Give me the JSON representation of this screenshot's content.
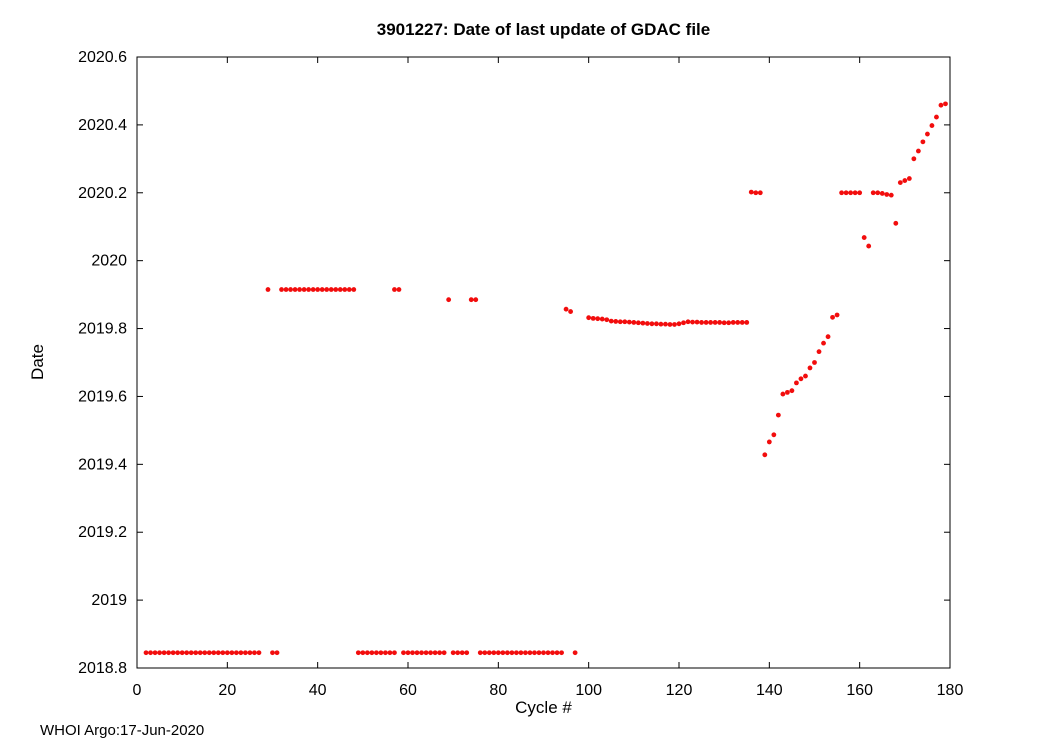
{
  "figure": {
    "footer": "WHOI Argo:17-Jun-2020"
  },
  "chart_data": {
    "type": "scatter",
    "title": "3901227: Date of last update of GDAC file",
    "xlabel": "Cycle #",
    "ylabel": "Date",
    "xlim": [
      0,
      180
    ],
    "ylim": [
      2018.8,
      2020.6
    ],
    "xticks": [
      0,
      20,
      40,
      60,
      80,
      100,
      120,
      140,
      160,
      180
    ],
    "yticks": [
      2018.8,
      2019,
      2019.2,
      2019.4,
      2019.6,
      2019.8,
      2020,
      2020.2,
      2020.4,
      2020.6
    ],
    "ytick_labels": [
      "2018.8",
      "2019",
      "2019.2",
      "2019.4",
      "2019.6",
      "2019.8",
      "2020",
      "2020.2",
      "2020.4",
      "2020.6"
    ],
    "grid": false,
    "legend": null,
    "marker_color": "#f20d0d",
    "marker_size": 2.4,
    "points": [
      [
        2,
        2018.845
      ],
      [
        3,
        2018.845
      ],
      [
        4,
        2018.845
      ],
      [
        5,
        2018.845
      ],
      [
        6,
        2018.845
      ],
      [
        7,
        2018.845
      ],
      [
        8,
        2018.845
      ],
      [
        9,
        2018.845
      ],
      [
        10,
        2018.845
      ],
      [
        11,
        2018.845
      ],
      [
        12,
        2018.845
      ],
      [
        13,
        2018.845
      ],
      [
        14,
        2018.845
      ],
      [
        15,
        2018.845
      ],
      [
        16,
        2018.845
      ],
      [
        17,
        2018.845
      ],
      [
        18,
        2018.845
      ],
      [
        19,
        2018.845
      ],
      [
        20,
        2018.845
      ],
      [
        21,
        2018.845
      ],
      [
        22,
        2018.845
      ],
      [
        23,
        2018.845
      ],
      [
        24,
        2018.845
      ],
      [
        25,
        2018.845
      ],
      [
        26,
        2018.845
      ],
      [
        27,
        2018.845
      ],
      [
        30,
        2018.845
      ],
      [
        31,
        2018.845
      ],
      [
        29,
        2019.915
      ],
      [
        32,
        2019.915
      ],
      [
        33,
        2019.915
      ],
      [
        34,
        2019.915
      ],
      [
        35,
        2019.915
      ],
      [
        36,
        2019.915
      ],
      [
        37,
        2019.915
      ],
      [
        38,
        2019.915
      ],
      [
        39,
        2019.915
      ],
      [
        40,
        2019.915
      ],
      [
        41,
        2019.915
      ],
      [
        42,
        2019.915
      ],
      [
        43,
        2019.915
      ],
      [
        44,
        2019.915
      ],
      [
        45,
        2019.915
      ],
      [
        46,
        2019.915
      ],
      [
        47,
        2019.915
      ],
      [
        48,
        2019.915
      ],
      [
        49,
        2018.845
      ],
      [
        50,
        2018.845
      ],
      [
        51,
        2018.845
      ],
      [
        52,
        2018.845
      ],
      [
        53,
        2018.845
      ],
      [
        54,
        2018.845
      ],
      [
        55,
        2018.845
      ],
      [
        56,
        2018.845
      ],
      [
        57,
        2018.845
      ],
      [
        57,
        2019.915
      ],
      [
        58,
        2019.915
      ],
      [
        59,
        2018.845
      ],
      [
        60,
        2018.845
      ],
      [
        61,
        2018.845
      ],
      [
        62,
        2018.845
      ],
      [
        63,
        2018.845
      ],
      [
        64,
        2018.845
      ],
      [
        65,
        2018.845
      ],
      [
        66,
        2018.845
      ],
      [
        67,
        2018.845
      ],
      [
        68,
        2018.845
      ],
      [
        69,
        2019.885
      ],
      [
        70,
        2018.845
      ],
      [
        71,
        2018.845
      ],
      [
        72,
        2018.845
      ],
      [
        73,
        2018.845
      ],
      [
        74,
        2019.885
      ],
      [
        75,
        2019.885
      ],
      [
        76,
        2018.845
      ],
      [
        77,
        2018.845
      ],
      [
        78,
        2018.845
      ],
      [
        79,
        2018.845
      ],
      [
        80,
        2018.845
      ],
      [
        81,
        2018.845
      ],
      [
        82,
        2018.845
      ],
      [
        83,
        2018.845
      ],
      [
        84,
        2018.845
      ],
      [
        85,
        2018.845
      ],
      [
        86,
        2018.845
      ],
      [
        87,
        2018.845
      ],
      [
        88,
        2018.845
      ],
      [
        89,
        2018.845
      ],
      [
        90,
        2018.845
      ],
      [
        91,
        2018.845
      ],
      [
        92,
        2018.845
      ],
      [
        93,
        2018.845
      ],
      [
        94,
        2018.845
      ],
      [
        95,
        2019.857
      ],
      [
        96,
        2019.85
      ],
      [
        97,
        2018.845
      ],
      [
        100,
        2019.832
      ],
      [
        101,
        2019.83
      ],
      [
        102,
        2019.829
      ],
      [
        103,
        2019.828
      ],
      [
        104,
        2019.826
      ],
      [
        105,
        2019.822
      ],
      [
        106,
        2019.821
      ],
      [
        107,
        2019.82
      ],
      [
        108,
        2019.82
      ],
      [
        109,
        2019.819
      ],
      [
        110,
        2019.818
      ],
      [
        111,
        2019.817
      ],
      [
        112,
        2019.816
      ],
      [
        113,
        2019.815
      ],
      [
        114,
        2019.814
      ],
      [
        115,
        2019.814
      ],
      [
        116,
        2019.813
      ],
      [
        117,
        2019.813
      ],
      [
        118,
        2019.812
      ],
      [
        119,
        2019.812
      ],
      [
        120,
        2019.814
      ],
      [
        121,
        2019.817
      ],
      [
        122,
        2019.82
      ],
      [
        123,
        2019.819
      ],
      [
        124,
        2019.819
      ],
      [
        125,
        2019.818
      ],
      [
        126,
        2019.818
      ],
      [
        127,
        2019.818
      ],
      [
        128,
        2019.818
      ],
      [
        129,
        2019.818
      ],
      [
        130,
        2019.817
      ],
      [
        131,
        2019.817
      ],
      [
        132,
        2019.818
      ],
      [
        133,
        2019.818
      ],
      [
        134,
        2019.818
      ],
      [
        135,
        2019.818
      ],
      [
        136,
        2020.202
      ],
      [
        137,
        2020.2
      ],
      [
        138,
        2020.2
      ],
      [
        139,
        2019.428
      ],
      [
        140,
        2019.466
      ],
      [
        141,
        2019.487
      ],
      [
        142,
        2019.545
      ],
      [
        143,
        2019.607
      ],
      [
        144,
        2019.612
      ],
      [
        145,
        2019.617
      ],
      [
        146,
        2019.64
      ],
      [
        147,
        2019.652
      ],
      [
        148,
        2019.66
      ],
      [
        149,
        2019.684
      ],
      [
        150,
        2019.7
      ],
      [
        151,
        2019.732
      ],
      [
        152,
        2019.757
      ],
      [
        153,
        2019.776
      ],
      [
        154,
        2019.833
      ],
      [
        155,
        2019.84
      ],
      [
        156,
        2020.2
      ],
      [
        157,
        2020.2
      ],
      [
        158,
        2020.2
      ],
      [
        159,
        2020.2
      ],
      [
        160,
        2020.2
      ],
      [
        161,
        2020.068
      ],
      [
        162,
        2020.043
      ],
      [
        163,
        2020.2
      ],
      [
        164,
        2020.2
      ],
      [
        165,
        2020.198
      ],
      [
        166,
        2020.195
      ],
      [
        167,
        2020.193
      ],
      [
        168,
        2020.11
      ],
      [
        169,
        2020.23
      ],
      [
        170,
        2020.236
      ],
      [
        171,
        2020.242
      ],
      [
        172,
        2020.3
      ],
      [
        173,
        2020.323
      ],
      [
        174,
        2020.35
      ],
      [
        175,
        2020.373
      ],
      [
        176,
        2020.398
      ],
      [
        177,
        2020.423
      ],
      [
        178,
        2020.458
      ],
      [
        179,
        2020.462
      ]
    ]
  }
}
